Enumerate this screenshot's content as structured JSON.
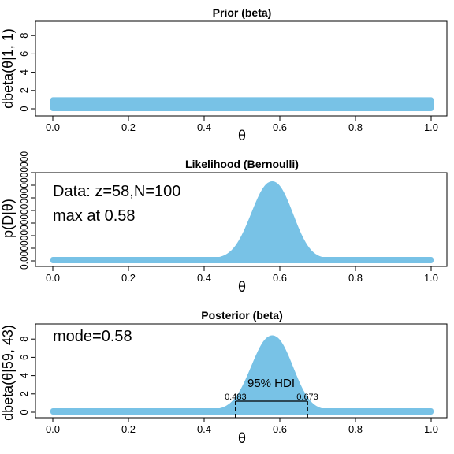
{
  "colors": {
    "fill": "#78c2e6",
    "axis": "#000000",
    "background": "#ffffff"
  },
  "chart_data": [
    {
      "type": "area",
      "title": "Prior (beta)",
      "xlabel": "θ",
      "ylabel": "dbeta(θ|1, 1)",
      "xlim": [
        0,
        1
      ],
      "ylim": [
        0,
        9
      ],
      "x_ticks": [
        "0.0",
        "0.2",
        "0.4",
        "0.6",
        "0.8",
        "1.0"
      ],
      "y_ticks": [
        "0",
        "2",
        "4",
        "6",
        "8"
      ],
      "series": [
        {
          "distribution": "beta",
          "a": 1,
          "b": 1,
          "values_at": {
            "0.0": 1,
            "0.5": 1,
            "1.0": 1
          }
        }
      ],
      "annotations": []
    },
    {
      "type": "area",
      "title": "Likelihood (Bernoulli)",
      "xlabel": "θ",
      "ylabel": "p(D|θ)",
      "xlim": [
        0,
        1
      ],
      "x_ticks": [
        "0.0",
        "0.2",
        "0.4",
        "0.6",
        "0.8",
        "1.0"
      ],
      "y_ticks": [
        "0.000000000000000000000",
        "0.000000000000000000000",
        "0.000000000000000000000",
        "0.000000000000000000000",
        "0.000000000000000000000",
        "0.000000000000000000000",
        "0.000000000000000000000",
        "0.000000000000000000000"
      ],
      "series": [
        {
          "distribution": "bernoulli-likelihood",
          "z": 58,
          "N": 100,
          "peak_x": 0.58
        }
      ],
      "annotations": [
        "Data: z=58,N=100",
        "max at 0.58"
      ]
    },
    {
      "type": "area",
      "title": "Posterior (beta)",
      "xlabel": "θ",
      "ylabel": "dbeta(θ|59, 43)",
      "xlim": [
        0,
        1
      ],
      "ylim": [
        0,
        9
      ],
      "x_ticks": [
        "0.0",
        "0.2",
        "0.4",
        "0.6",
        "0.8",
        "1.0"
      ],
      "y_ticks": [
        "0",
        "2",
        "4",
        "6",
        "8"
      ],
      "series": [
        {
          "distribution": "beta",
          "a": 59,
          "b": 43,
          "peak_x": 0.58,
          "peak_y": 8.1
        }
      ],
      "annotations": [
        "mode=0.58",
        "95% HDI",
        "0.483",
        "0.673"
      ],
      "hdi": {
        "low": 0.483,
        "high": 0.673,
        "level": "95% HDI"
      }
    }
  ]
}
